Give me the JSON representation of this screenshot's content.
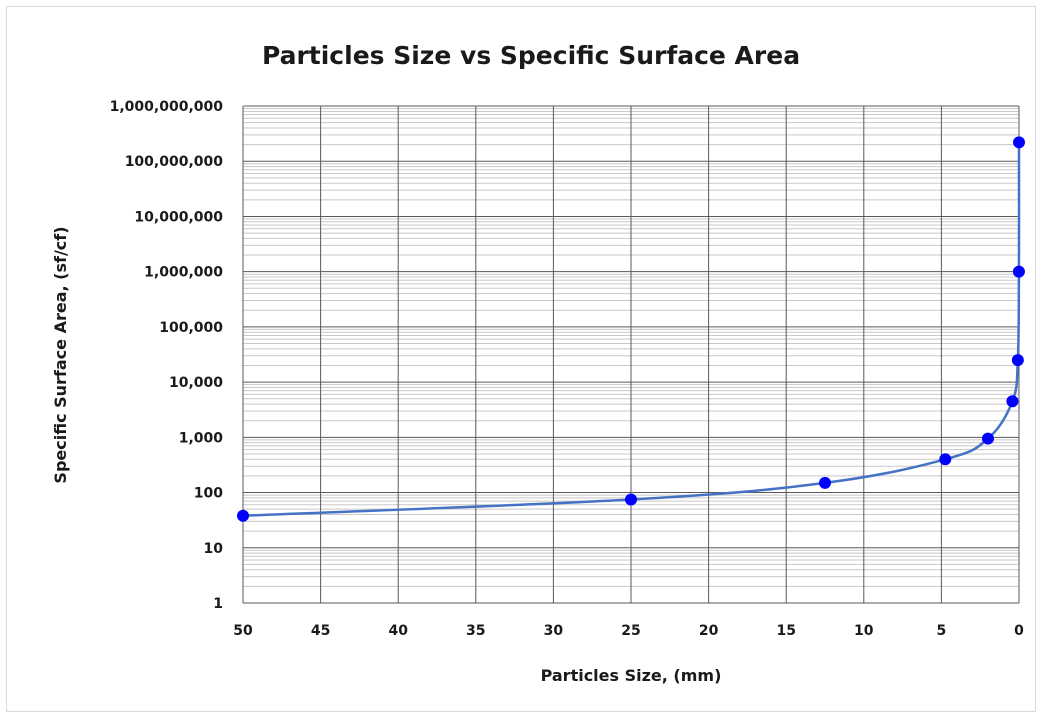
{
  "chart_data": {
    "type": "scatter",
    "title": "Particles Size vs Specific Surface Area",
    "xlabel": "Particles Size, (mm)",
    "ylabel": "Specific Surface Area, (sf/cf)",
    "x_reversed": true,
    "xlim": [
      0,
      50
    ],
    "y_scale": "log",
    "ylim": [
      1,
      1000000000
    ],
    "x_ticks": [
      50,
      45,
      40,
      35,
      30,
      25,
      20,
      15,
      10,
      5,
      0
    ],
    "x_tick_labels": [
      "50",
      "45",
      "40",
      "35",
      "30",
      "25",
      "20",
      "15",
      "10",
      "5",
      "0"
    ],
    "y_ticks": [
      1,
      10,
      100,
      1000,
      10000,
      100000,
      1000000,
      10000000,
      100000000,
      1000000000
    ],
    "y_tick_labels": [
      "1",
      "10",
      "100",
      "1,000",
      "10,000",
      "100,000",
      "1,000,000",
      "10,000,000",
      "100,000,000",
      "1,000,000,000"
    ],
    "grid": true,
    "legend": "none",
    "series": [
      {
        "x": [
          50,
          25,
          12.5,
          4.75,
          2,
          0.425,
          0.075,
          0.005,
          1e-05
        ],
        "y": [
          38,
          75,
          150,
          400,
          950,
          4500,
          25000,
          1000000,
          220000000
        ],
        "marker_color": "#0000ff",
        "line_color": "#4472c4"
      }
    ]
  }
}
